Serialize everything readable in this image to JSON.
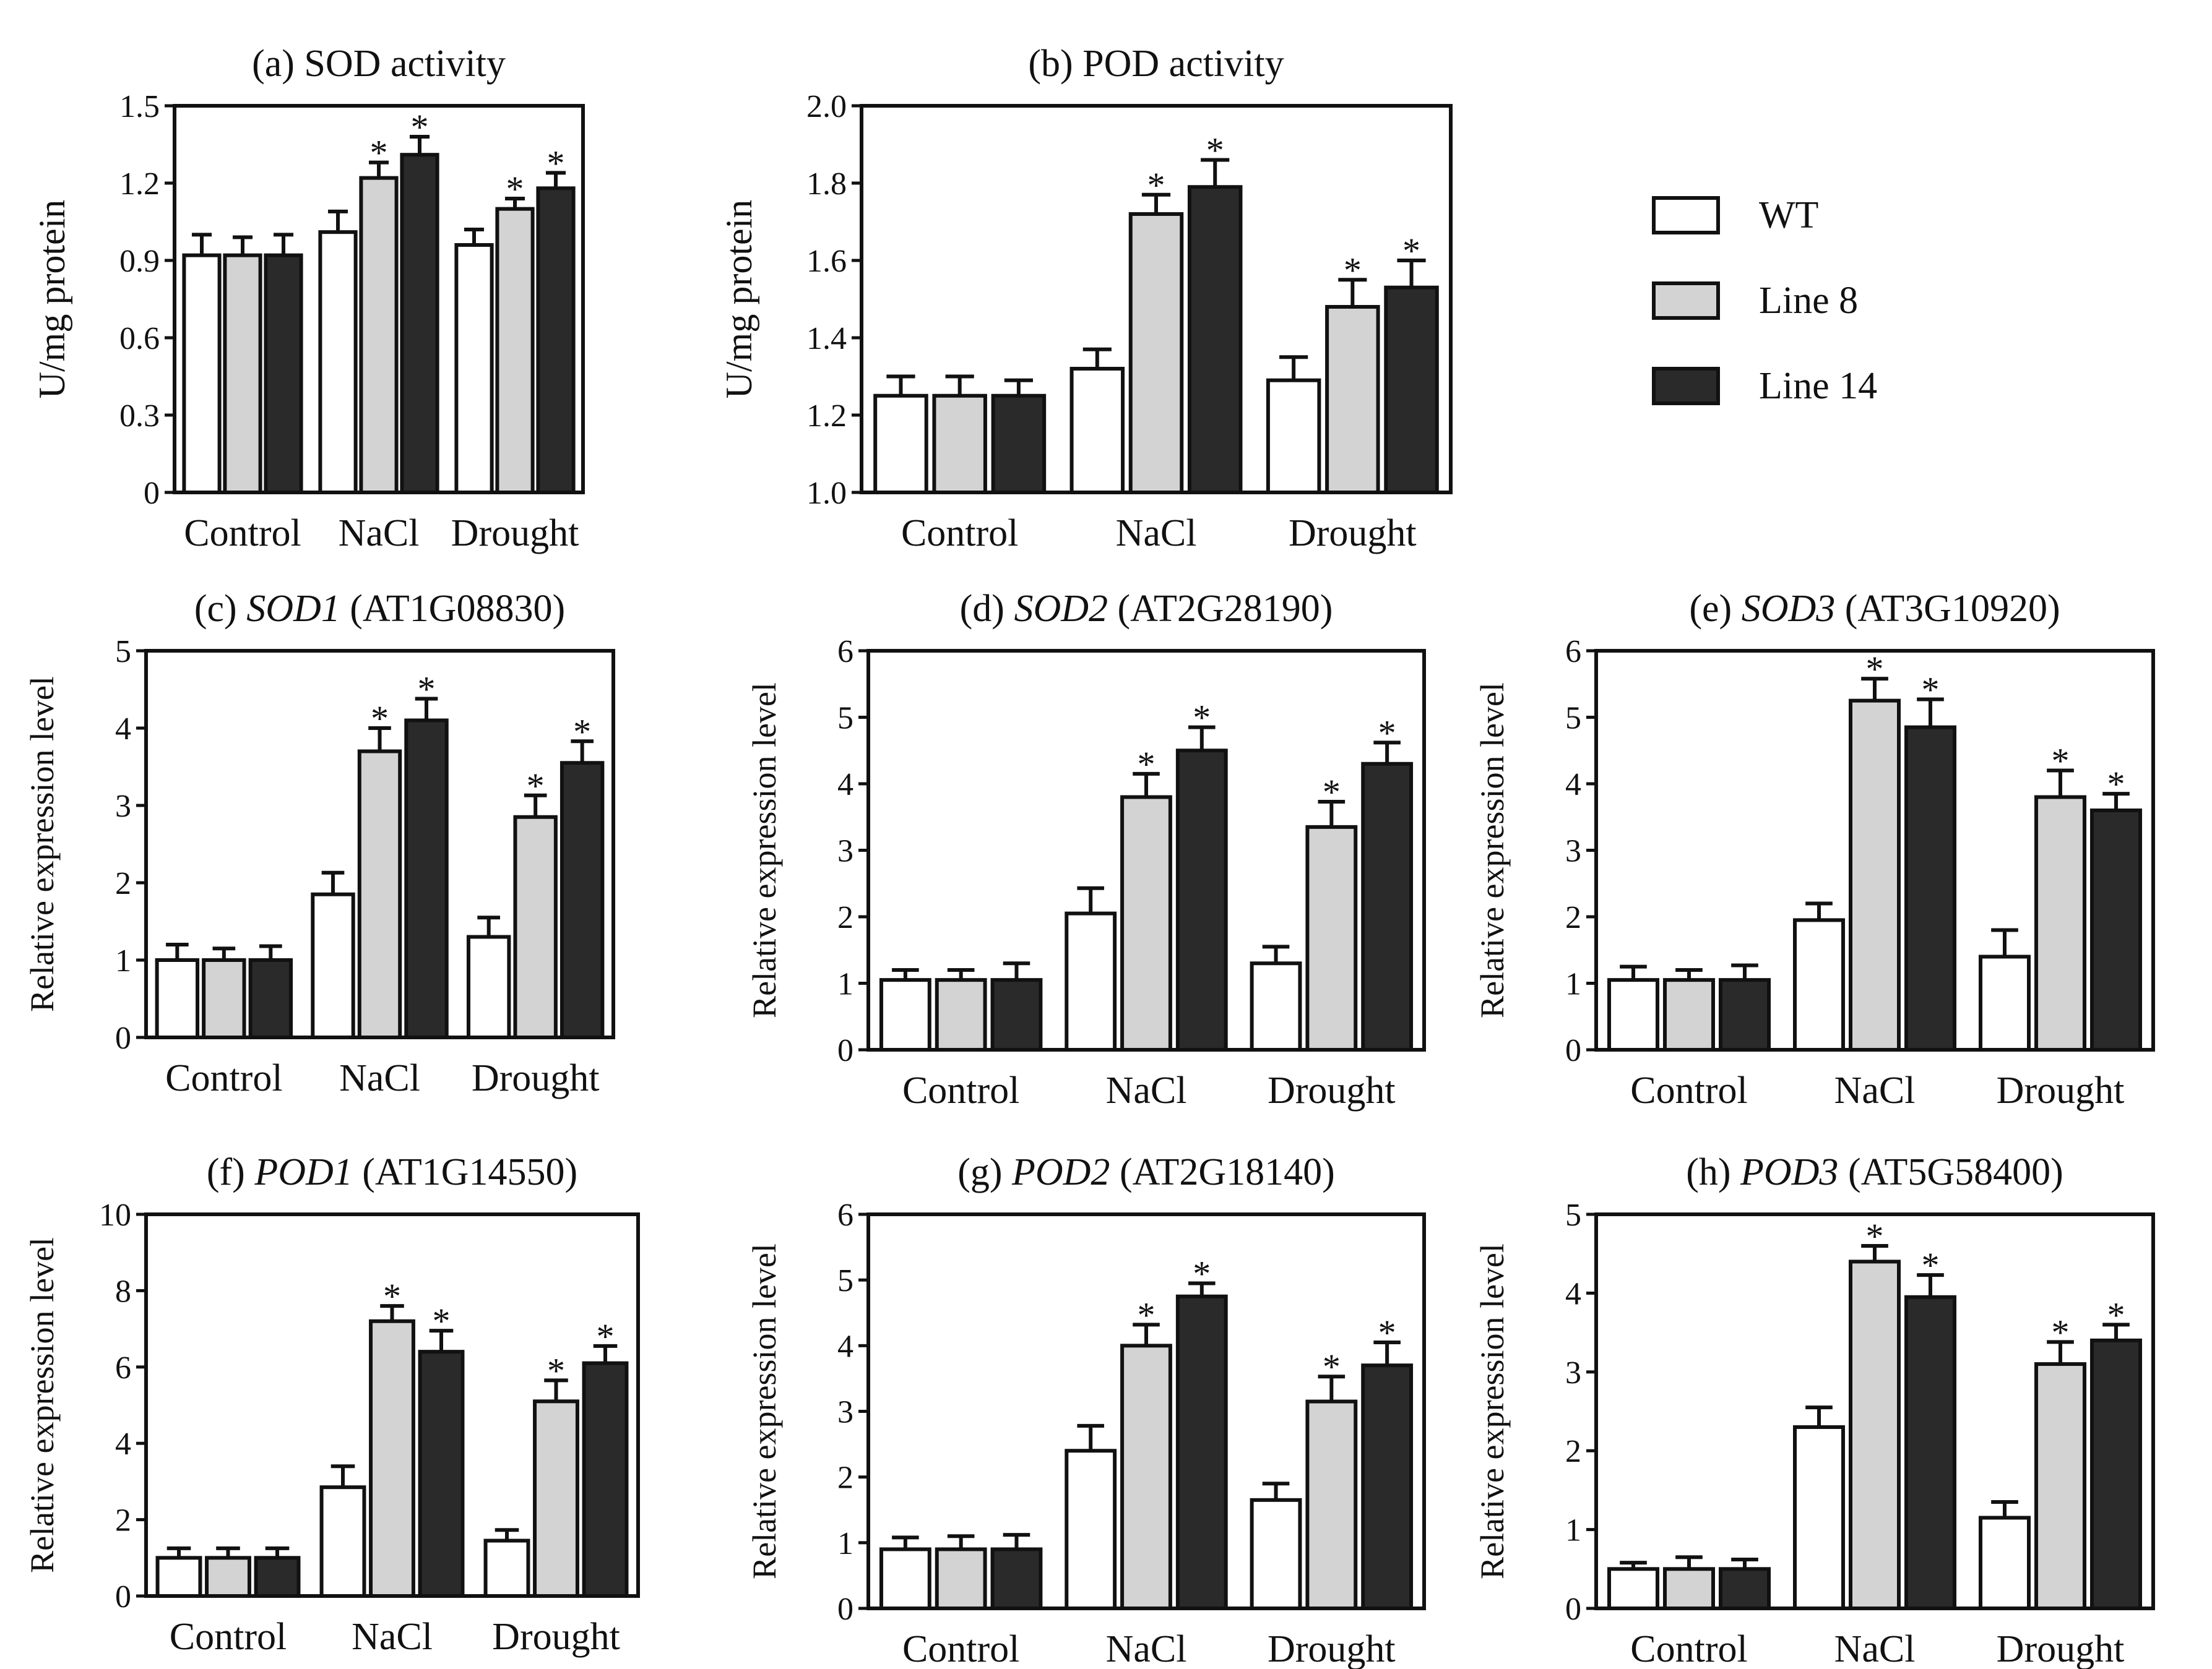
{
  "legend": [
    {
      "label": "WT",
      "color": "#ffffff"
    },
    {
      "label": "Line 8",
      "color": "#d3d3d3"
    },
    {
      "label": "Line 14",
      "color": "#2a2a2a"
    }
  ],
  "chart_data": [
    {
      "type": "bar",
      "panel": "a",
      "title": {
        "prefix": "(a) SOD activity",
        "gene": "",
        "suffix": ""
      },
      "ylabel": "U/mg protein",
      "ylim": [
        0,
        1.5
      ],
      "yticks": [
        "0",
        "0.3",
        "0.6",
        "0.9",
        "1.2",
        "1.5"
      ],
      "categories": [
        "Control",
        "NaCl",
        "Drought"
      ],
      "series": [
        {
          "name": "WT",
          "values": [
            0.92,
            1.01,
            0.96
          ],
          "errors": [
            0.08,
            0.08,
            0.06
          ],
          "significant": [
            false,
            false,
            false
          ]
        },
        {
          "name": "Line 8",
          "values": [
            0.92,
            1.22,
            1.1
          ],
          "errors": [
            0.07,
            0.06,
            0.04
          ],
          "significant": [
            false,
            true,
            true
          ]
        },
        {
          "name": "Line 14",
          "values": [
            0.92,
            1.31,
            1.18
          ],
          "errors": [
            0.08,
            0.07,
            0.06
          ],
          "significant": [
            false,
            true,
            true
          ]
        }
      ]
    },
    {
      "type": "bar",
      "panel": "b",
      "title": {
        "prefix": "(b) POD activity",
        "gene": "",
        "suffix": ""
      },
      "ylabel": "U/mg protein",
      "ylim": [
        1.0,
        2.0
      ],
      "yticks": [
        "1.0",
        "1.2",
        "1.4",
        "1.6",
        "1.8",
        "2.0"
      ],
      "categories": [
        "Control",
        "NaCl",
        "Drought"
      ],
      "series": [
        {
          "name": "WT",
          "values": [
            1.25,
            1.32,
            1.29
          ],
          "errors": [
            0.05,
            0.05,
            0.06
          ],
          "significant": [
            false,
            false,
            false
          ]
        },
        {
          "name": "Line 8",
          "values": [
            1.25,
            1.72,
            1.48
          ],
          "errors": [
            0.05,
            0.05,
            0.07
          ],
          "significant": [
            false,
            true,
            true
          ]
        },
        {
          "name": "Line 14",
          "values": [
            1.25,
            1.79,
            1.53
          ],
          "errors": [
            0.04,
            0.07,
            0.07
          ],
          "significant": [
            false,
            true,
            true
          ]
        }
      ]
    },
    {
      "type": "bar",
      "panel": "c",
      "title": {
        "prefix": "(c) ",
        "gene": "SOD1",
        "suffix": " (AT1G08830)"
      },
      "ylabel": "Relative expression level",
      "ylim": [
        0,
        5
      ],
      "yticks": [
        "0",
        "1",
        "2",
        "3",
        "4",
        "5"
      ],
      "categories": [
        "Control",
        "NaCl",
        "Drought"
      ],
      "series": [
        {
          "name": "WT",
          "values": [
            1.0,
            1.85,
            1.3
          ],
          "errors": [
            0.2,
            0.28,
            0.25
          ],
          "significant": [
            false,
            false,
            false
          ]
        },
        {
          "name": "Line 8",
          "values": [
            1.0,
            3.7,
            2.85
          ],
          "errors": [
            0.15,
            0.3,
            0.28
          ],
          "significant": [
            false,
            true,
            true
          ]
        },
        {
          "name": "Line 14",
          "values": [
            1.0,
            4.1,
            3.55
          ],
          "errors": [
            0.18,
            0.28,
            0.28
          ],
          "significant": [
            false,
            true,
            true
          ]
        }
      ]
    },
    {
      "type": "bar",
      "panel": "d",
      "title": {
        "prefix": "(d) ",
        "gene": "SOD2",
        "suffix": " (AT2G28190)"
      },
      "ylabel": "Relative expression level",
      "ylim": [
        0,
        6
      ],
      "yticks": [
        "0",
        "1",
        "2",
        "3",
        "4",
        "5",
        "6"
      ],
      "categories": [
        "Control",
        "NaCl",
        "Drought"
      ],
      "series": [
        {
          "name": "WT",
          "values": [
            1.05,
            2.05,
            1.3
          ],
          "errors": [
            0.15,
            0.38,
            0.25
          ],
          "significant": [
            false,
            false,
            false
          ]
        },
        {
          "name": "Line 8",
          "values": [
            1.05,
            3.8,
            3.35
          ],
          "errors": [
            0.15,
            0.35,
            0.38
          ],
          "significant": [
            false,
            true,
            true
          ]
        },
        {
          "name": "Line 14",
          "values": [
            1.05,
            4.5,
            4.3
          ],
          "errors": [
            0.25,
            0.35,
            0.32
          ],
          "significant": [
            false,
            true,
            true
          ]
        }
      ]
    },
    {
      "type": "bar",
      "panel": "e",
      "title": {
        "prefix": "(e) ",
        "gene": "SOD3",
        "suffix": " (AT3G10920)"
      },
      "ylabel": "Relative expression level",
      "ylim": [
        0,
        6
      ],
      "yticks": [
        "0",
        "1",
        "2",
        "3",
        "4",
        "5",
        "6"
      ],
      "categories": [
        "Control",
        "NaCl",
        "Drought"
      ],
      "series": [
        {
          "name": "WT",
          "values": [
            1.05,
            1.95,
            1.4
          ],
          "errors": [
            0.2,
            0.25,
            0.4
          ],
          "significant": [
            false,
            false,
            false
          ]
        },
        {
          "name": "Line 8",
          "values": [
            1.05,
            5.25,
            3.8
          ],
          "errors": [
            0.15,
            0.33,
            0.4
          ],
          "significant": [
            false,
            true,
            true
          ]
        },
        {
          "name": "Line 14",
          "values": [
            1.05,
            4.85,
            3.6
          ],
          "errors": [
            0.22,
            0.42,
            0.25
          ],
          "significant": [
            false,
            true,
            true
          ]
        }
      ]
    },
    {
      "type": "bar",
      "panel": "f",
      "title": {
        "prefix": "(f) ",
        "gene": "POD1",
        "suffix": " (AT1G14550)"
      },
      "ylabel": "Relative expression level",
      "ylim": [
        0,
        10
      ],
      "yticks": [
        "0",
        "2",
        "4",
        "6",
        "8",
        "10"
      ],
      "categories": [
        "Control",
        "NaCl",
        "Drought"
      ],
      "series": [
        {
          "name": "WT",
          "values": [
            1.0,
            2.85,
            1.45
          ],
          "errors": [
            0.25,
            0.55,
            0.28
          ],
          "significant": [
            false,
            false,
            false
          ]
        },
        {
          "name": "Line 8",
          "values": [
            1.0,
            7.2,
            5.1
          ],
          "errors": [
            0.25,
            0.4,
            0.55
          ],
          "significant": [
            false,
            true,
            true
          ]
        },
        {
          "name": "Line 14",
          "values": [
            1.0,
            6.4,
            6.1
          ],
          "errors": [
            0.25,
            0.55,
            0.45
          ],
          "significant": [
            false,
            true,
            true
          ]
        }
      ]
    },
    {
      "type": "bar",
      "panel": "g",
      "title": {
        "prefix": "(g) ",
        "gene": "POD2",
        "suffix": " (AT2G18140)"
      },
      "ylabel": "Relative expression level",
      "ylim": [
        0,
        6
      ],
      "yticks": [
        "0",
        "1",
        "2",
        "3",
        "4",
        "5",
        "6"
      ],
      "categories": [
        "Control",
        "NaCl",
        "Drought"
      ],
      "series": [
        {
          "name": "WT",
          "values": [
            0.9,
            2.4,
            1.65
          ],
          "errors": [
            0.18,
            0.38,
            0.25
          ],
          "significant": [
            false,
            false,
            false
          ]
        },
        {
          "name": "Line 8",
          "values": [
            0.9,
            4.0,
            3.15
          ],
          "errors": [
            0.2,
            0.32,
            0.38
          ],
          "significant": [
            false,
            true,
            true
          ]
        },
        {
          "name": "Line 14",
          "values": [
            0.9,
            4.75,
            3.7
          ],
          "errors": [
            0.22,
            0.2,
            0.35
          ],
          "significant": [
            false,
            true,
            true
          ]
        }
      ]
    },
    {
      "type": "bar",
      "panel": "h",
      "title": {
        "prefix": "(h) ",
        "gene": "POD3",
        "suffix": " (AT5G58400)"
      },
      "ylabel": "Relative expression level",
      "ylim": [
        0,
        5
      ],
      "yticks": [
        "0",
        "1",
        "2",
        "3",
        "4",
        "5"
      ],
      "categories": [
        "Control",
        "NaCl",
        "Drought"
      ],
      "series": [
        {
          "name": "WT",
          "values": [
            0.5,
            2.3,
            1.15
          ],
          "errors": [
            0.08,
            0.25,
            0.2
          ],
          "significant": [
            false,
            false,
            false
          ]
        },
        {
          "name": "Line 8",
          "values": [
            0.5,
            4.4,
            3.1
          ],
          "errors": [
            0.15,
            0.2,
            0.28
          ],
          "significant": [
            false,
            true,
            true
          ]
        },
        {
          "name": "Line 14",
          "values": [
            0.5,
            3.95,
            3.4
          ],
          "errors": [
            0.12,
            0.28,
            0.2
          ],
          "significant": [
            false,
            true,
            true
          ]
        }
      ]
    }
  ]
}
